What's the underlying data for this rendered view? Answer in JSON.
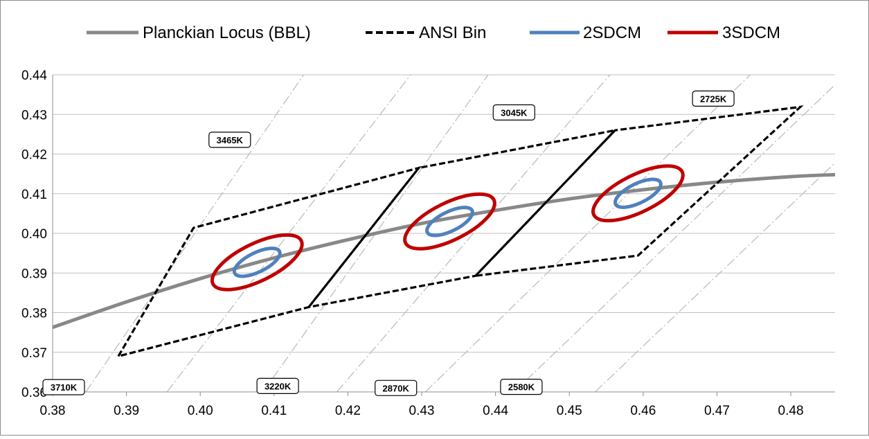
{
  "chart_data": {
    "type": "scatter",
    "title": "",
    "xlabel": "",
    "ylabel": "",
    "xlim": [
      0.38,
      0.486
    ],
    "ylim": [
      0.36,
      0.44
    ],
    "x_ticks": [
      "0.38",
      "0.39",
      "0.40",
      "0.41",
      "0.42",
      "0.43",
      "0.44",
      "0.45",
      "0.46",
      "0.47",
      "0.48"
    ],
    "y_ticks": [
      "0.36",
      "0.37",
      "0.38",
      "0.39",
      "0.40",
      "0.41",
      "0.42",
      "0.43",
      "0.44"
    ],
    "grid": "horizontal",
    "legend_position": "top",
    "series": [
      {
        "name": "Planckian Locus (BBL)",
        "style": "solid",
        "color": "#888888",
        "x": [
          0.38,
          0.39,
          0.4,
          0.41,
          0.42,
          0.43,
          0.44,
          0.45,
          0.46,
          0.47,
          0.48,
          0.486
        ],
        "y": [
          0.3763,
          0.3827,
          0.3886,
          0.3938,
          0.3984,
          0.4025,
          0.4058,
          0.4087,
          0.411,
          0.4129,
          0.4143,
          0.4148
        ]
      },
      {
        "name": "ANSI Bin",
        "style": "dashed",
        "color": "#000000",
        "polygons": [
          {
            "x": [
              0.3889,
              0.3991,
              0.4296,
              0.4147,
              0.3889
            ],
            "y": [
              0.369,
              0.4014,
              0.4165,
              0.3814,
              0.369
            ]
          },
          {
            "x": [
              0.4147,
              0.4296,
              0.4562,
              0.4373,
              0.4147
            ],
            "y": [
              0.3814,
              0.4165,
              0.426,
              0.3893,
              0.3814
            ]
          },
          {
            "x": [
              0.4373,
              0.4562,
              0.4813,
              0.4593,
              0.4373
            ],
            "y": [
              0.3893,
              0.426,
              0.4319,
              0.3944,
              0.3893
            ]
          }
        ]
      },
      {
        "name": "2SDCM",
        "style": "solid",
        "color": "#4f81bd",
        "ellipses": [
          {
            "cx": 0.4077,
            "cy": 0.3927
          },
          {
            "cx": 0.4338,
            "cy": 0.403
          },
          {
            "cx": 0.4593,
            "cy": 0.4101
          }
        ]
      },
      {
        "name": "3SDCM",
        "style": "solid",
        "color": "#c00000",
        "ellipses": [
          {
            "cx": 0.4077,
            "cy": 0.3927
          },
          {
            "cx": 0.4338,
            "cy": 0.403
          },
          {
            "cx": 0.4593,
            "cy": 0.4101
          }
        ]
      }
    ],
    "cct_lines": [
      {
        "label": "3710K",
        "x0": 0.3845,
        "y0": 0.36,
        "x1": 0.414,
        "y1": 0.44
      },
      {
        "label": "3465K",
        "x0": 0.3955,
        "y0": 0.36,
        "x1": 0.4285,
        "y1": 0.44
      },
      {
        "label": "3220K",
        "x0": 0.4085,
        "y0": 0.36,
        "x1": 0.439,
        "y1": 0.44
      },
      {
        "label": "3045K",
        "x0": 0.4185,
        "y0": 0.36,
        "x1": 0.4555,
        "y1": 0.44
      },
      {
        "label": "2870K",
        "x0": 0.4305,
        "y0": 0.36,
        "x1": 0.4745,
        "y1": 0.44
      },
      {
        "label": "2725K",
        "x0": 0.4425,
        "y0": 0.36,
        "x1": 0.486,
        "y1": 0.4375
      },
      {
        "label": "2580K",
        "x0": 0.4535,
        "y0": 0.36,
        "x1": 0.486,
        "y1": 0.4178
      }
    ],
    "cct_label_anchors": [
      {
        "label": "3710K",
        "x": 0.3815,
        "y": 0.3612
      },
      {
        "label": "3465K",
        "x": 0.404,
        "y": 0.4236
      },
      {
        "label": "3220K",
        "x": 0.4105,
        "y": 0.3615
      },
      {
        "label": "3045K",
        "x": 0.4425,
        "y": 0.4305
      },
      {
        "label": "2870K",
        "x": 0.4265,
        "y": 0.361
      },
      {
        "label": "2725K",
        "x": 0.4695,
        "y": 0.434
      },
      {
        "label": "2580K",
        "x": 0.4435,
        "y": 0.3613
      }
    ]
  }
}
